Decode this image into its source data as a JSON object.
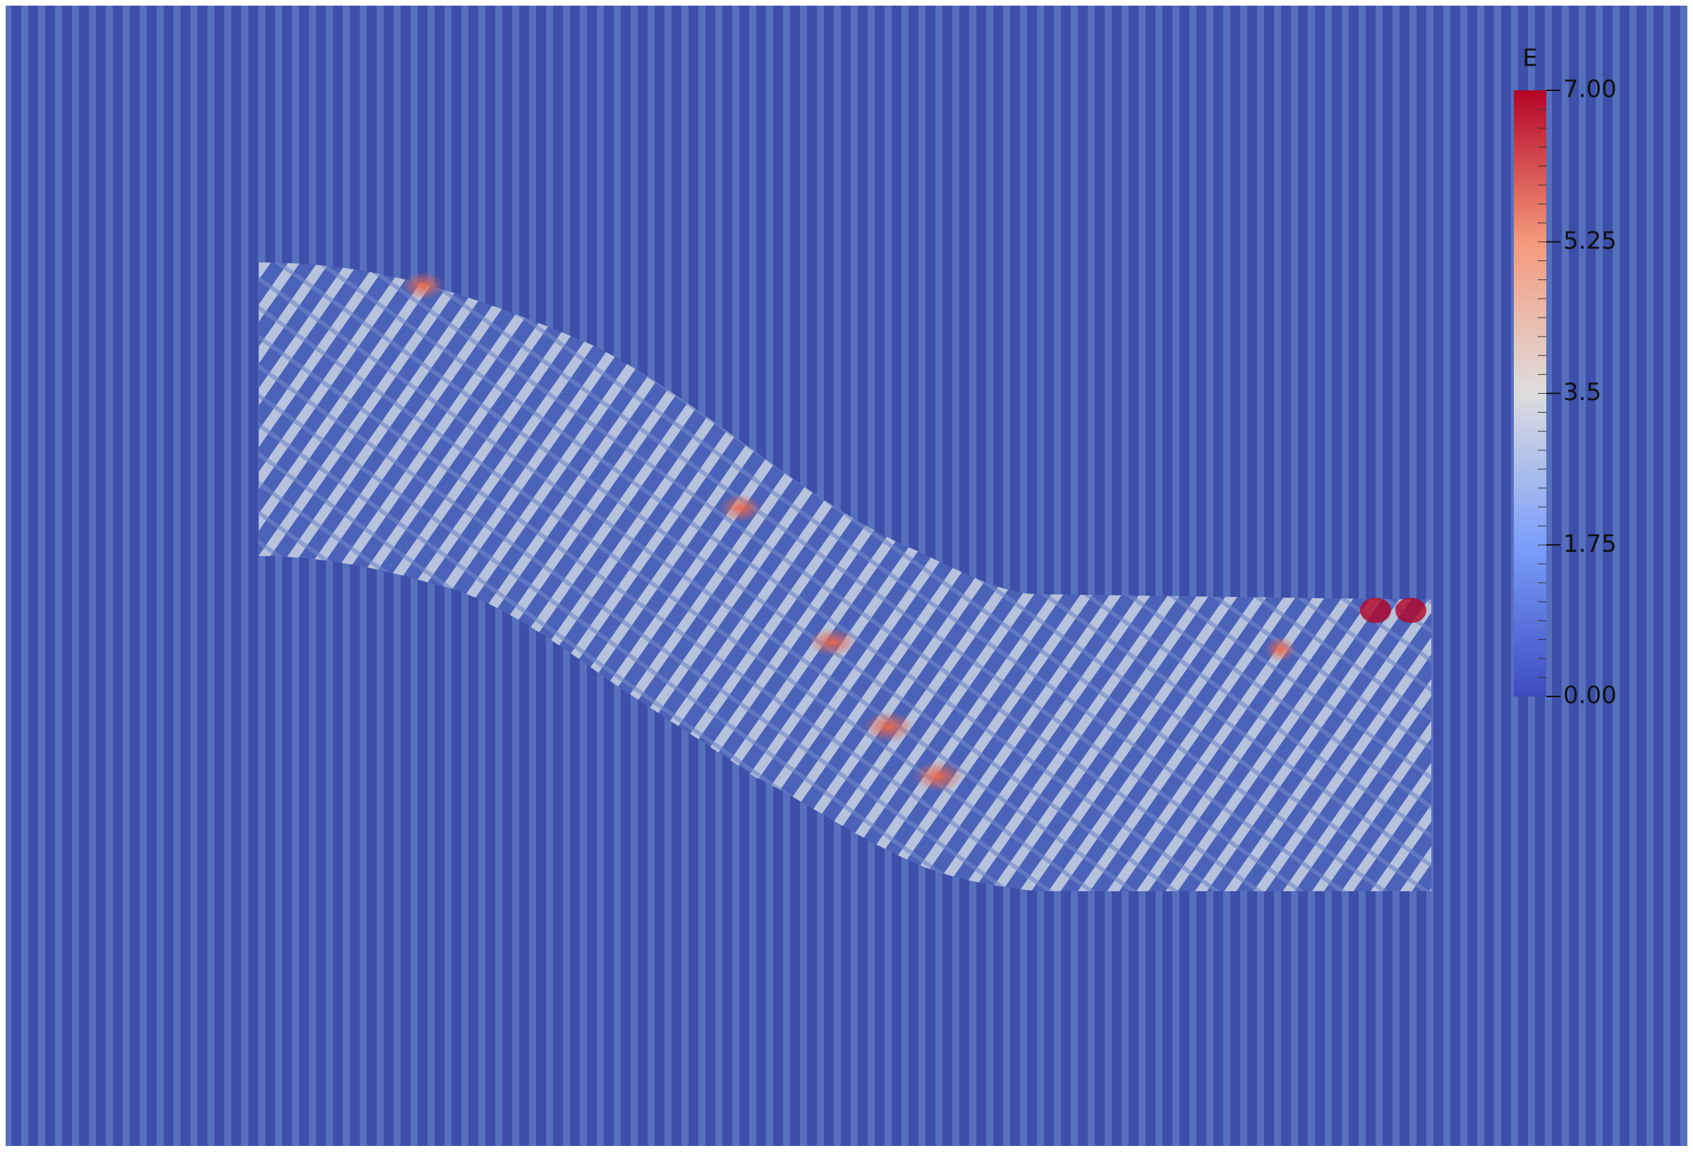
{
  "colorbar": {
    "title": "E",
    "ticks": [
      "7.00",
      "5.25",
      "3.5",
      "1.75",
      "0.00"
    ]
  }
}
